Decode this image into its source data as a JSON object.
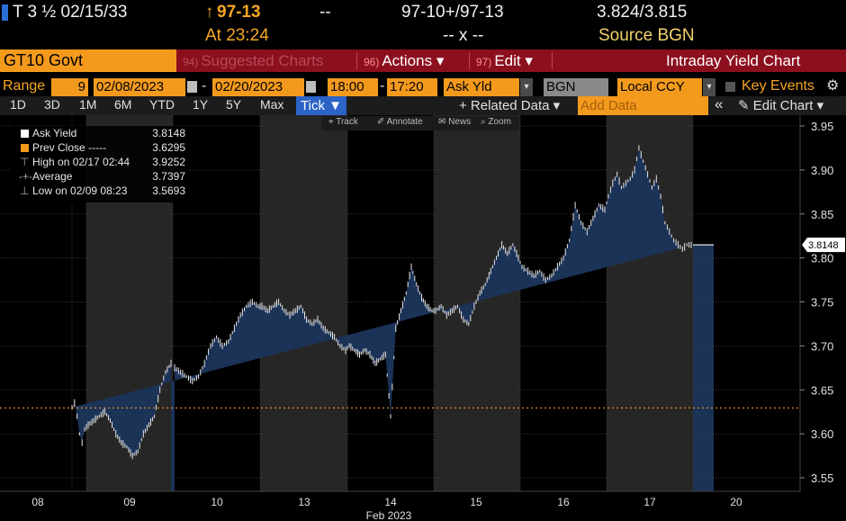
{
  "header": {
    "security": "T 3 ½ 02/15/33",
    "change_arrow": "↑",
    "price": "97-13",
    "price_change": "--",
    "bid_ask": "97-10+/97-13",
    "yield_bid_ask": "3.824/3.815",
    "time_label": "At 23:24",
    "size": "-- x --",
    "source_label": "Source BGN"
  },
  "function_bar": {
    "ticker": "GT10 Govt",
    "suggested": {
      "num": "94)",
      "label": "Suggested Charts"
    },
    "actions": {
      "num": "96)",
      "label": "Actions ▾"
    },
    "edit": {
      "num": "97)",
      "label": "Edit ▾"
    },
    "title": "Intraday Yield Chart"
  },
  "range_bar": {
    "range_label": "Range",
    "range_value": "9",
    "start_date": "02/08/2023",
    "dash": "-",
    "end_date": "02/20/2023",
    "start_time": "18:00",
    "time_dash": "-",
    "end_time": "17:20",
    "field": "Ask Yld",
    "source": "BGN",
    "currency": "Local CCY",
    "key_events": "Key Events"
  },
  "period_bar": {
    "periods": [
      "1D",
      "3D",
      "1M",
      "6M",
      "YTD",
      "1Y",
      "5Y",
      "Max"
    ],
    "tick": "Tick ▼",
    "related": "+ Related Data ▾",
    "add_data_placeholder": "Add Data",
    "collapse": "«",
    "edit_chart": "✎ Edit Chart ▾"
  },
  "tools": {
    "track": "⌖ Track",
    "annotate": "✐ Annotate",
    "news": "✉ News",
    "zoom": "⌕ Zoom"
  },
  "legend": {
    "ask_yield": {
      "label": "Ask Yield",
      "value": "3.8148",
      "color": "#ffffff"
    },
    "prev_close": {
      "label": "Prev Close -----",
      "value": "3.6295",
      "color": "#f39a1d"
    },
    "high": {
      "label": "High on 02/17 02:44",
      "value": "3.9252"
    },
    "average": {
      "label": "Average",
      "value": "3.7397"
    },
    "low": {
      "label": "Low on 02/09 08:23",
      "value": "3.5693"
    }
  },
  "colors": {
    "accent_orange": "#f39a1d",
    "function_bar_red": "#8c0f1e",
    "area_fill": "#1c3358",
    "price_line": "#e8e8e8",
    "shade": "#2a2a2a",
    "prev_close_line": "#f39a1d"
  },
  "chart_data": {
    "type": "area",
    "title": "",
    "xlabel": "Feb 2023",
    "ylabel": "",
    "ylim": [
      3.54,
      3.96
    ],
    "y_ticks": [
      3.55,
      3.6,
      3.65,
      3.7,
      3.75,
      3.8,
      3.85,
      3.9,
      3.95
    ],
    "y_tick_labels": [
      "3.55",
      "3.60",
      "3.65",
      "3.70",
      "3.75",
      "3.80",
      "3.85",
      "3.90",
      "3.95"
    ],
    "x_ticks": [
      "08",
      "09",
      "10",
      "13",
      "14",
      "15",
      "16",
      "17",
      "20"
    ],
    "x_tick_labels": [
      "08",
      "09",
      "10",
      "13",
      "14",
      "15",
      "16",
      "17",
      "20"
    ],
    "prev_close": 3.6295,
    "last_value": 3.8148,
    "last_value_label": "3.8148",
    "shaded_sessions": [
      "09",
      "13",
      "15",
      "17"
    ],
    "grid": true,
    "legend_position": "top-left",
    "series": [
      {
        "name": "Ask Yield",
        "points": [
          [
            "08",
            3.63
          ],
          [
            "08",
            3.635
          ],
          [
            "08",
            3.62
          ],
          [
            "08",
            3.6
          ],
          [
            "08",
            3.59
          ],
          [
            "08",
            3.605
          ],
          [
            "09",
            3.61
          ],
          [
            "09",
            3.615
          ],
          [
            "09",
            3.62
          ],
          [
            "09",
            3.625
          ],
          [
            "09",
            3.615
          ],
          [
            "09",
            3.6
          ],
          [
            "09",
            3.59
          ],
          [
            "09",
            3.585
          ],
          [
            "09",
            3.575
          ],
          [
            "09",
            3.58
          ],
          [
            "09",
            3.6
          ],
          [
            "09",
            3.61
          ],
          [
            "09",
            3.62
          ],
          [
            "09",
            3.65
          ],
          [
            "09",
            3.67
          ],
          [
            "09",
            3.68
          ],
          [
            "10",
            3.675
          ],
          [
            "10",
            3.67
          ],
          [
            "10",
            3.665
          ],
          [
            "10",
            3.66
          ],
          [
            "10",
            3.665
          ],
          [
            "10",
            3.68
          ],
          [
            "10",
            3.7
          ],
          [
            "10",
            3.71
          ],
          [
            "10",
            3.7
          ],
          [
            "10",
            3.705
          ],
          [
            "10",
            3.72
          ],
          [
            "10",
            3.735
          ],
          [
            "10",
            3.745
          ],
          [
            "10",
            3.75
          ],
          [
            "10",
            3.745
          ],
          [
            "13",
            3.745
          ],
          [
            "13",
            3.74
          ],
          [
            "13",
            3.745
          ],
          [
            "13",
            3.75
          ],
          [
            "13",
            3.74
          ],
          [
            "13",
            3.735
          ],
          [
            "13",
            3.74
          ],
          [
            "13",
            3.745
          ],
          [
            "13",
            3.73
          ],
          [
            "13",
            3.725
          ],
          [
            "13",
            3.73
          ],
          [
            "13",
            3.72
          ],
          [
            "13",
            3.715
          ],
          [
            "13",
            3.71
          ],
          [
            "13",
            3.7
          ],
          [
            "13",
            3.695
          ],
          [
            "14",
            3.7
          ],
          [
            "14",
            3.695
          ],
          [
            "14",
            3.69
          ],
          [
            "14",
            3.695
          ],
          [
            "14",
            3.69
          ],
          [
            "14",
            3.68
          ],
          [
            "14",
            3.685
          ],
          [
            "14",
            3.69
          ],
          [
            "14",
            3.62
          ],
          [
            "14",
            3.72
          ],
          [
            "14",
            3.74
          ],
          [
            "14",
            3.76
          ],
          [
            "14",
            3.79
          ],
          [
            "14",
            3.77
          ],
          [
            "14",
            3.755
          ],
          [
            "14",
            3.745
          ],
          [
            "14",
            3.74
          ],
          [
            "15",
            3.74
          ],
          [
            "15",
            3.745
          ],
          [
            "15",
            3.735
          ],
          [
            "15",
            3.74
          ],
          [
            "15",
            3.745
          ],
          [
            "15",
            3.73
          ],
          [
            "15",
            3.725
          ],
          [
            "15",
            3.745
          ],
          [
            "15",
            3.76
          ],
          [
            "15",
            3.77
          ],
          [
            "15",
            3.785
          ],
          [
            "15",
            3.8
          ],
          [
            "15",
            3.815
          ],
          [
            "15",
            3.805
          ],
          [
            "15",
            3.815
          ],
          [
            "15",
            3.8
          ],
          [
            "16",
            3.79
          ],
          [
            "16",
            3.785
          ],
          [
            "16",
            3.78
          ],
          [
            "16",
            3.785
          ],
          [
            "16",
            3.775
          ],
          [
            "16",
            3.78
          ],
          [
            "16",
            3.79
          ],
          [
            "16",
            3.8
          ],
          [
            "16",
            3.82
          ],
          [
            "16",
            3.86
          ],
          [
            "16",
            3.84
          ],
          [
            "16",
            3.83
          ],
          [
            "16",
            3.845
          ],
          [
            "16",
            3.86
          ],
          [
            "16",
            3.855
          ],
          [
            "17",
            3.87
          ],
          [
            "17",
            3.885
          ],
          [
            "17",
            3.895
          ],
          [
            "17",
            3.88
          ],
          [
            "17",
            3.885
          ],
          [
            "17",
            3.89
          ],
          [
            "17",
            3.9
          ],
          [
            "17",
            3.925
          ],
          [
            "17",
            3.91
          ],
          [
            "17",
            3.895
          ],
          [
            "17",
            3.88
          ],
          [
            "17",
            3.89
          ],
          [
            "17",
            3.87
          ],
          [
            "17",
            3.84
          ],
          [
            "17",
            3.83
          ],
          [
            "17",
            3.82
          ],
          [
            "17",
            3.815
          ],
          [
            "17",
            3.81
          ],
          [
            "17",
            3.815
          ],
          [
            "17",
            3.8148
          ]
        ]
      }
    ]
  }
}
